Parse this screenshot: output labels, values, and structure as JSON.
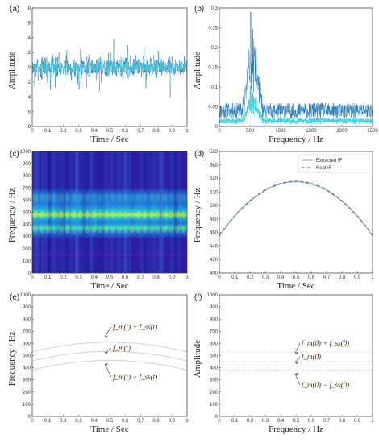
{
  "chart_data": [
    {
      "id": "a",
      "type": "line",
      "panel_label": "(a)",
      "xlabel": "Time / Sec",
      "ylabel": "Amplitude",
      "xlim": [
        0,
        1
      ],
      "ylim": [
        -8,
        8
      ],
      "xticks": [
        "0",
        "0.1",
        "0.2",
        "0.3",
        "0.4",
        "0.5",
        "0.6",
        "0.7",
        "0.8",
        "0.9",
        "1"
      ],
      "yticks": [
        "-8",
        "-6",
        "-4",
        "-2",
        "0",
        "2",
        "4",
        "6",
        "8"
      ],
      "signal": {
        "mean": 0,
        "core_spread": 2,
        "peak_spread": 5.5
      },
      "colors": [
        "#1f77b4",
        "#48d6e0"
      ]
    },
    {
      "id": "b",
      "type": "line",
      "panel_label": "(b)",
      "xlabel": "Frequency / Hz",
      "ylabel": "Amplitude",
      "xlim": [
        0,
        2500
      ],
      "ylim": [
        0,
        0.3
      ],
      "xticks": [
        "0",
        "500",
        "1000",
        "1500",
        "2000",
        "2500"
      ],
      "yticks": [
        "0",
        "0.05",
        "0.1",
        "0.15",
        "0.2",
        "0.25",
        "0.3"
      ],
      "spectrum": {
        "peak_frequency": 510,
        "peak_amplitude": 0.29,
        "band": [
          380,
          700
        ],
        "noise_level": 0.04
      },
      "colors": [
        "#1f77b4",
        "#48d6e0"
      ]
    },
    {
      "id": "c",
      "type": "heatmap",
      "panel_label": "(c)",
      "xlabel": "Time / Sec",
      "ylabel": "Frequency / Hz",
      "xlim": [
        0,
        1
      ],
      "ylim": [
        0,
        1000
      ],
      "xticks": [
        "0",
        "0.1",
        "0.2",
        "0.3",
        "0.4",
        "0.5",
        "0.6",
        "0.7",
        "0.8",
        "0.9",
        "1"
      ],
      "yticks": [
        "0",
        "100",
        "200",
        "300",
        "400",
        "500",
        "600",
        "700",
        "800",
        "900",
        "1000"
      ],
      "ridges": [
        {
          "frequency": 480,
          "strength": "high"
        },
        {
          "frequency": 360,
          "strength": "medium"
        },
        {
          "frequency": 620,
          "strength": "low"
        }
      ],
      "colormap": [
        "#2b1fa8",
        "#1e7fe0",
        "#2ad7c9",
        "#bff23c"
      ]
    },
    {
      "id": "d",
      "type": "line",
      "panel_label": "(d)",
      "xlabel": "Time / Sec",
      "ylabel": "Frequency / Hz",
      "xlim": [
        0,
        1
      ],
      "ylim": [
        400,
        580
      ],
      "xticks": [
        "0",
        "0.1",
        "0.2",
        "0.3",
        "0.4",
        "0.5",
        "0.6",
        "0.7",
        "0.8",
        "0.9",
        "1"
      ],
      "yticks": [
        "400",
        "420",
        "440",
        "460",
        "480",
        "500",
        "520",
        "540",
        "560",
        "580"
      ],
      "x": [
        0,
        0.1,
        0.2,
        0.3,
        0.4,
        0.5,
        0.6,
        0.7,
        0.8,
        0.9,
        1
      ],
      "series": [
        {
          "name": "Extracted IF",
          "color": "#6fa8dc",
          "dash": "",
          "values": [
            455,
            485,
            508,
            523,
            532,
            535,
            532,
            523,
            508,
            485,
            455
          ]
        },
        {
          "name": "Real IF",
          "color": "#666666",
          "dash": "4,3",
          "values": [
            456,
            486,
            509,
            524,
            533,
            536,
            533,
            524,
            509,
            486,
            456
          ]
        }
      ],
      "legend_position": "top-right"
    },
    {
      "id": "e",
      "type": "line",
      "panel_label": "(e)",
      "xlabel": "Time / Sec",
      "ylabel": "Frequency / Hz",
      "xlim": [
        0,
        1
      ],
      "ylim": [
        0,
        1000
      ],
      "xticks": [
        "0",
        "0.1",
        "0.2",
        "0.3",
        "0.4",
        "0.5",
        "0.6",
        "0.7",
        "0.8",
        "0.9",
        "1"
      ],
      "yticks": [
        "0",
        "100",
        "200",
        "300",
        "400",
        "500",
        "600",
        "700",
        "800",
        "900",
        "1000"
      ],
      "curves": [
        {
          "offset": 75,
          "amplitude": 80
        },
        {
          "offset": 0,
          "amplitude": 80
        },
        {
          "offset": -75,
          "amplitude": 80
        }
      ],
      "annotations": [
        "f_m(t) + f_ss(t)",
        "f_m(t)",
        "f_m(t) − f_ss(t)"
      ]
    },
    {
      "id": "f",
      "type": "line",
      "panel_label": "(f)",
      "xlabel": "Frequency / Hz",
      "ylabel": "Amplitude",
      "xlim": [
        0,
        1
      ],
      "ylim": [
        0,
        1000
      ],
      "xticks": [
        "0",
        "0.1",
        "0.2",
        "0.3",
        "0.4",
        "0.5",
        "0.6",
        "0.7",
        "0.8",
        "0.9",
        "1"
      ],
      "yticks": [
        "0",
        "100",
        "200",
        "300",
        "400",
        "500",
        "600",
        "700",
        "800",
        "900",
        "1000"
      ],
      "levels": [
        455,
        530,
        380
      ],
      "annotations": [
        "f_m(0) + f_ss(0)",
        "f_m(0)",
        "f_m(0) − f_ss(0)"
      ]
    }
  ]
}
